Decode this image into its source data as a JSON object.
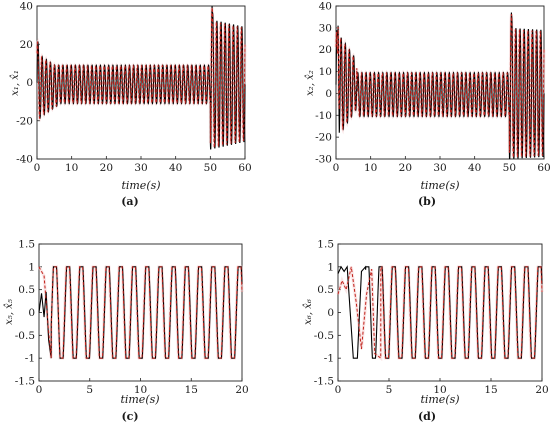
{
  "chart_data": [
    {
      "type": "line",
      "panel": "(a)",
      "xlabel": "time(s)",
      "ylabel": "x1, x̂1",
      "ylabel_display": "x₁, x̂₁",
      "xlim": [
        0,
        60
      ],
      "ylim": [
        -40,
        40
      ],
      "xticks": [
        0,
        10,
        20,
        30,
        40,
        50,
        60
      ],
      "yticks": [
        -40,
        -20,
        0,
        20,
        40
      ],
      "series": [
        {
          "role": "actual",
          "color": "#000000",
          "style": "solid"
        },
        {
          "role": "estimate",
          "color": "#c0201a",
          "style": "dashed"
        }
      ],
      "signal": {
        "kind": "oscillation",
        "period": 1.2,
        "segments": [
          {
            "t0": 0,
            "t1": 1,
            "amp_start": 22,
            "amp_end": 18,
            "offset": 0
          },
          {
            "t0": 1,
            "t1": 6,
            "amp_start": 16,
            "amp_end": 10,
            "offset": -2
          },
          {
            "t0": 6,
            "t1": 50,
            "amp_start": 10,
            "amp_end": 10,
            "offset": -1
          },
          {
            "t0": 50,
            "t1": 60,
            "amp_start": 34,
            "amp_end": 30,
            "offset": -1
          }
        ],
        "spikes": [
          [
            50.5,
            40
          ]
        ],
        "estimate_phase": 0.15
      }
    },
    {
      "type": "line",
      "panel": "(b)",
      "xlabel": "time(s)",
      "ylabel": "x2, x̂2",
      "ylabel_display": "x₂, x̂₂",
      "xlim": [
        0,
        60
      ],
      "ylim": [
        -30,
        40
      ],
      "xticks": [
        0,
        10,
        20,
        30,
        40,
        50,
        60
      ],
      "yticks": [
        -30,
        -20,
        -10,
        0,
        10,
        20,
        30,
        40
      ],
      "series": [
        {
          "role": "actual",
          "color": "#000000",
          "style": "solid"
        },
        {
          "role": "estimate",
          "color": "#c0201a",
          "style": "dashed"
        }
      ],
      "signal": {
        "kind": "oscillation",
        "period": 1.2,
        "segments": [
          {
            "t0": 0,
            "t1": 6,
            "amp_start": 25,
            "amp_end": 11,
            "offset": 4
          },
          {
            "t0": 6,
            "t1": 50,
            "amp_start": 10,
            "amp_end": 10,
            "offset": -0.5
          },
          {
            "t0": 50,
            "t1": 60,
            "amp_start": 30,
            "amp_end": 29,
            "offset": 0
          }
        ],
        "spikes": [
          [
            0.6,
            31
          ],
          [
            50.6,
            37
          ]
        ],
        "estimate_phase": 0.15
      }
    },
    {
      "type": "line",
      "panel": "(c)",
      "xlabel": "time(s)",
      "ylabel": "x5, x̂5",
      "ylabel_display": "x₅, x̂₅",
      "xlim": [
        0,
        20
      ],
      "ylim": [
        -1.5,
        1.5
      ],
      "xticks": [
        0,
        5,
        10,
        15,
        20
      ],
      "yticks": [
        -1.5,
        -1,
        -0.5,
        0,
        0.5,
        1,
        1.5
      ],
      "series": [
        {
          "role": "actual",
          "color": "#000000",
          "style": "solid"
        },
        {
          "role": "estimate",
          "color": "#c0201a",
          "style": "dashed"
        }
      ],
      "signal": {
        "kind": "clipped_sine",
        "period": 1.3,
        "amplitude": 1,
        "transient_end": 2.2,
        "actual_start": [
          [
            0,
            0.0
          ],
          [
            0.25,
            0.42
          ],
          [
            0.5,
            -0.1
          ],
          [
            0.7,
            0.45
          ],
          [
            0.95,
            -0.6
          ],
          [
            1.2,
            -1.0
          ]
        ],
        "estimate_start": [
          [
            0,
            1.0
          ],
          [
            0.5,
            0.8
          ],
          [
            0.9,
            -0.3
          ],
          [
            1.2,
            -1.0
          ]
        ]
      }
    },
    {
      "type": "line",
      "panel": "(d)",
      "xlabel": "time(s)",
      "ylabel": "x6, x̂6",
      "ylabel_display": "x₆, x̂₆",
      "xlim": [
        0,
        20
      ],
      "ylim": [
        -1.5,
        1.5
      ],
      "xticks": [
        0,
        5,
        10,
        15,
        20
      ],
      "yticks": [
        -1.5,
        -1,
        -0.5,
        0,
        0.5,
        1,
        1.5
      ],
      "series": [
        {
          "role": "actual",
          "color": "#000000",
          "style": "solid"
        },
        {
          "role": "estimate",
          "color": "#c0201a",
          "style": "dashed"
        }
      ],
      "signal": {
        "kind": "clipped_sine",
        "period": 1.3,
        "amplitude": 1,
        "transient_end": 4.2,
        "actual_start": [
          [
            0,
            0.85
          ],
          [
            0.3,
            1.0
          ],
          [
            0.6,
            0.9
          ],
          [
            0.9,
            1.0
          ],
          [
            1.2,
            0.0
          ],
          [
            1.5,
            -1.0
          ],
          [
            1.9,
            -1.0
          ],
          [
            2.3,
            0.9
          ],
          [
            2.7,
            1.0
          ]
        ],
        "estimate_start": [
          [
            0,
            0.4
          ],
          [
            0.4,
            0.7
          ],
          [
            0.8,
            0.5
          ],
          [
            1.3,
            1.0
          ],
          [
            1.8,
            0.2
          ],
          [
            2.3,
            -0.8
          ],
          [
            2.8,
            0.4
          ],
          [
            3.3,
            0.95
          ],
          [
            3.6,
            -0.9
          ],
          [
            4.2,
            -1.0
          ]
        ]
      }
    }
  ]
}
